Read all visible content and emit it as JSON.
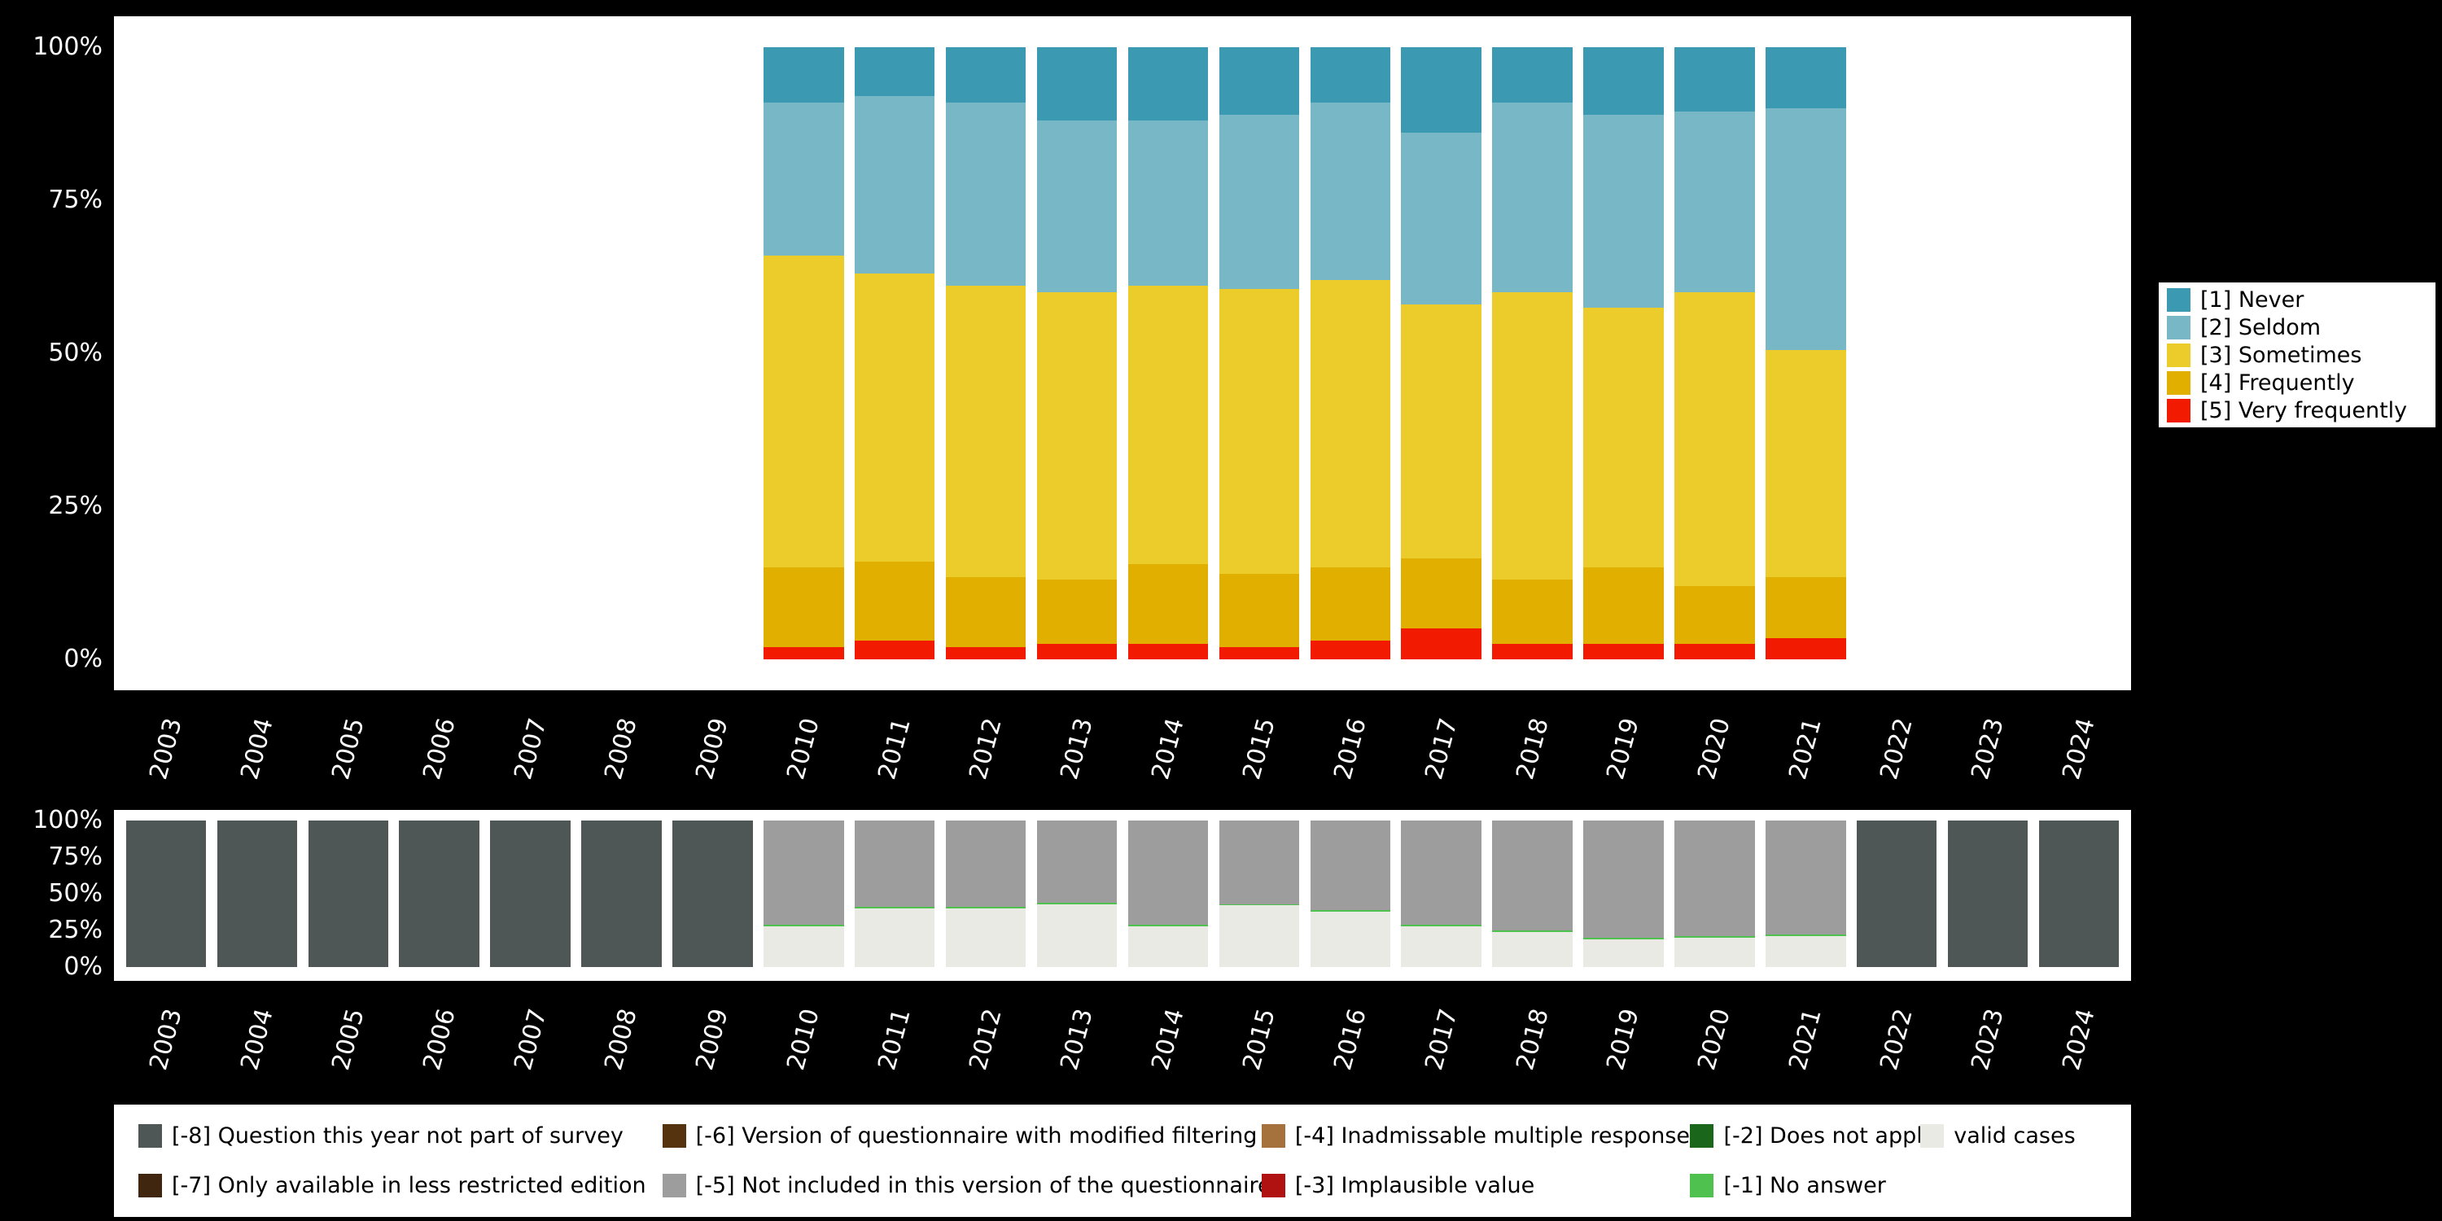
{
  "figure": {
    "background": "#000000",
    "panel_background": "#ffffff"
  },
  "chart_data": [
    {
      "name": "response-distribution",
      "type": "bar",
      "stacking": "percent",
      "grid": false,
      "legend_position": "right",
      "ylim": [
        0,
        100
      ],
      "y_ticks": [
        "100%",
        "75%",
        "50%",
        "25%",
        "0%"
      ],
      "categories": [
        "2003",
        "2004",
        "2005",
        "2006",
        "2007",
        "2008",
        "2009",
        "2010",
        "2011",
        "2012",
        "2013",
        "2014",
        "2015",
        "2016",
        "2017",
        "2018",
        "2019",
        "2020",
        "2021",
        "2022",
        "2023",
        "2024"
      ],
      "series": [
        {
          "name": "[5] Very frequently",
          "color": "#F21A00",
          "values": [
            0,
            0,
            0,
            0,
            0,
            0,
            0,
            2,
            3,
            2,
            2.5,
            2.5,
            2,
            3,
            5,
            2.5,
            2.5,
            2.5,
            3.5,
            0,
            0,
            0
          ]
        },
        {
          "name": "[4] Frequently",
          "color": "#E1AF00",
          "values": [
            0,
            0,
            0,
            0,
            0,
            0,
            0,
            13,
            13,
            11.5,
            10.5,
            13,
            12,
            12,
            11.5,
            10.5,
            12.5,
            9.5,
            10,
            0,
            0,
            0
          ]
        },
        {
          "name": "[3] Sometimes",
          "color": "#EBCC2A",
          "values": [
            0,
            0,
            0,
            0,
            0,
            0,
            0,
            51,
            47,
            47.5,
            47,
            45.5,
            46.5,
            47,
            41.5,
            47,
            42.5,
            48,
            37,
            0,
            0,
            0
          ]
        },
        {
          "name": "[2] Seldom",
          "color": "#78B7C5",
          "values": [
            0,
            0,
            0,
            0,
            0,
            0,
            0,
            25,
            29,
            30,
            28,
            27,
            28.5,
            29,
            28,
            31,
            31.5,
            29.5,
            39.5,
            0,
            0,
            0
          ]
        },
        {
          "name": "[1] Never",
          "color": "#3B9AB2",
          "values": [
            0,
            0,
            0,
            0,
            0,
            0,
            0,
            9,
            8,
            9,
            12,
            12,
            11,
            9,
            14,
            9,
            11,
            10.5,
            10,
            0,
            0,
            0
          ]
        }
      ],
      "legend": [
        {
          "label": "[1] Never",
          "color": "#3B9AB2"
        },
        {
          "label": "[2] Seldom",
          "color": "#78B7C5"
        },
        {
          "label": "[3] Sometimes",
          "color": "#EBCC2A"
        },
        {
          "label": "[4] Frequently",
          "color": "#E1AF00"
        },
        {
          "label": "[5] Very frequently",
          "color": "#F21A00"
        }
      ]
    },
    {
      "name": "missing-values",
      "type": "bar",
      "stacking": "percent",
      "grid": false,
      "legend_position": "bottom",
      "ylim": [
        0,
        100
      ],
      "y_ticks": [
        "100%",
        "75%",
        "50%",
        "25%",
        "0%"
      ],
      "categories": [
        "2003",
        "2004",
        "2005",
        "2006",
        "2007",
        "2008",
        "2009",
        "2010",
        "2011",
        "2012",
        "2013",
        "2014",
        "2015",
        "2016",
        "2017",
        "2018",
        "2019",
        "2020",
        "2021",
        "2022",
        "2023",
        "2024"
      ],
      "series": [
        {
          "name": "valid cases",
          "color": "#E8EAE3",
          "values": [
            0,
            0,
            0,
            0,
            0,
            0,
            0,
            28,
            40,
            40,
            43,
            28,
            42,
            38,
            28,
            24,
            19,
            20,
            21,
            0,
            0,
            0
          ]
        },
        {
          "name": "[-1] No answer",
          "color": "#4EC14E",
          "values": [
            0,
            0,
            0,
            0,
            0,
            0,
            0,
            1,
            1,
            1,
            1,
            1,
            1,
            1,
            1,
            1,
            1,
            1,
            1,
            0,
            0,
            0
          ]
        },
        {
          "name": "[-5] Not included in this version of the questionnaire",
          "color": "#9D9D9D",
          "values": [
            0,
            0,
            0,
            0,
            0,
            0,
            0,
            71,
            59,
            59,
            56,
            71,
            57,
            61,
            71,
            75,
            80,
            79,
            78,
            0,
            0,
            0
          ]
        },
        {
          "name": "[-8] Question this year not part of survey",
          "color": "#4E5656",
          "values": [
            100,
            100,
            100,
            100,
            100,
            100,
            100,
            0,
            0,
            0,
            0,
            0,
            0,
            0,
            0,
            0,
            0,
            0,
            0,
            100,
            100,
            100
          ]
        }
      ],
      "legend_rows": [
        [
          {
            "label": "[-8] Question this year not part of survey",
            "color": "#4E5656"
          },
          {
            "label": "[-6] Version of questionnaire with modified filtering",
            "color": "#55330E"
          },
          {
            "label": "[-4] Inadmissable multiple response",
            "color": "#A5713D"
          },
          {
            "label": "[-2] Does not apply",
            "color": "#1A661A"
          },
          {
            "label": "valid cases",
            "color": "#E8EAE3"
          }
        ],
        [
          {
            "label": "[-7] Only available in less restricted edition",
            "color": "#40260F"
          },
          {
            "label": "[-5] Not included in this version of the questionnaire",
            "color": "#9D9D9D"
          },
          {
            "label": "[-3] Implausible value",
            "color": "#B01111"
          },
          {
            "label": "[-1] No answer",
            "color": "#4EC14E"
          },
          null
        ]
      ]
    }
  ]
}
